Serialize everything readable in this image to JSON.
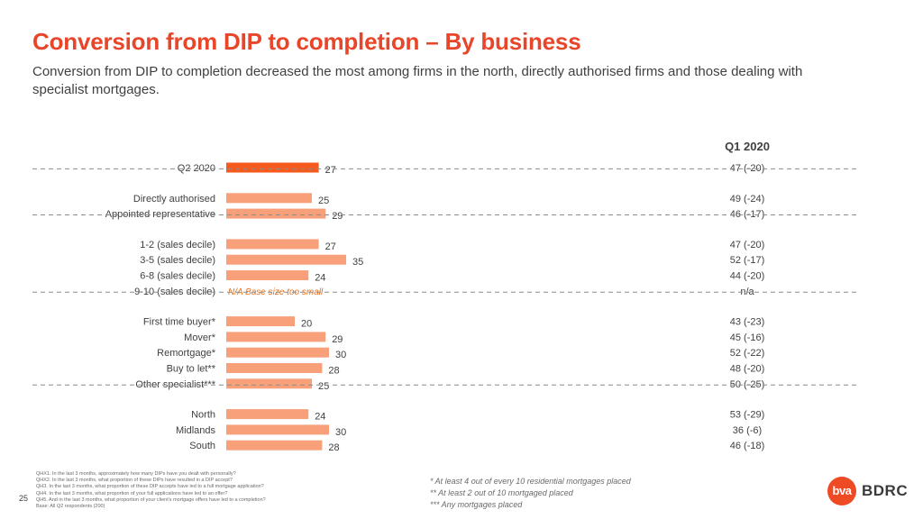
{
  "page": {
    "title": "Conversion from DIP to completion – By business",
    "subtitle": "Conversion from DIP to completion decreased the most among firms in the north, directly authorised firms and those dealing with specialist mortgages.",
    "page_number": "25"
  },
  "chart_data": {
    "type": "bar",
    "orientation": "horizontal",
    "xlim": [
      0,
      38
    ],
    "column_header": "Q1 2020",
    "colors": {
      "highlight": "#f55a1e",
      "bar": "#f7a07a",
      "label_na": "#e8701a",
      "divider": "#8c8c8c"
    },
    "groups": [
      {
        "name": "total",
        "rows": [
          {
            "label": "Q2 2020",
            "value": 27,
            "q1": "47 (-20)",
            "highlight": true
          }
        ]
      },
      {
        "name": "authorisation",
        "rows": [
          {
            "label": "Directly authorised",
            "value": 25,
            "q1": "49 (-24)"
          },
          {
            "label": "Appointed representative",
            "value": 29,
            "q1": "46 (-17)"
          }
        ]
      },
      {
        "name": "sales-decile",
        "rows": [
          {
            "label": "1-2 (sales decile)",
            "value": 27,
            "q1": "47 (-20)"
          },
          {
            "label": "3-5 (sales decile)",
            "value": 35,
            "q1": "52 (-17)"
          },
          {
            "label": "6-8 (sales decile)",
            "value": 24,
            "q1": "44 (-20)"
          },
          {
            "label": "9-10 (sales decile)",
            "value": null,
            "na_text": "N/A Base size too small",
            "q1": "n/a"
          }
        ]
      },
      {
        "name": "mortgage-type",
        "rows": [
          {
            "label": "First time buyer*",
            "value": 20,
            "q1": "43 (-23)"
          },
          {
            "label": "Mover*",
            "value": 29,
            "q1": "45 (-16)"
          },
          {
            "label": "Remortgage*",
            "value": 30,
            "q1": "52 (-22)"
          },
          {
            "label": "Buy to let**",
            "value": 28,
            "q1": "48 (-20)"
          },
          {
            "label": "Other specialist***",
            "value": 25,
            "q1": "50 (-25)"
          }
        ]
      },
      {
        "name": "region",
        "rows": [
          {
            "label": "North",
            "value": 24,
            "q1": "53 (-29)"
          },
          {
            "label": "Midlands",
            "value": 30,
            "q1": "36 (-6)"
          },
          {
            "label": "South",
            "value": 28,
            "q1": "46 (-18)"
          }
        ]
      }
    ]
  },
  "footnotes": {
    "questions": [
      "QHX1. In the last 3 months, approximately how many DIPs have you dealt with personally?",
      "QHX2. In the last 3 months, what proportion of these DIPs have resulted in a DIP accept?",
      "QH3. In the last 3 months, what proportion of these DIP accepts have led to a full mortgage application?",
      "QH4. In the last 3 months, what proportion of your full applications have led to an offer?",
      "QH5. And in the last 3 months, what proportion of your client's mortgage offers have led to a completion?",
      "Base: All Q2 respondents (200)"
    ],
    "notes": [
      "* At least 4 out of every 10 residential mortgages placed",
      "** At least 2 out of 10 mortgaged placed",
      "*** Any mortgages placed"
    ]
  },
  "logo": {
    "mark": "bva",
    "name": "BDRC"
  }
}
